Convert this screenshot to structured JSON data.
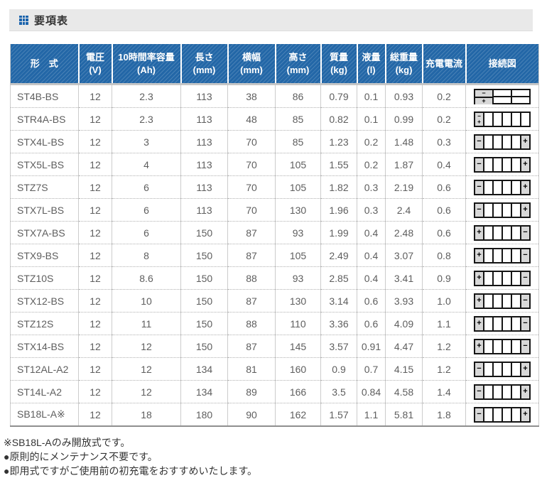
{
  "header": {
    "title": "要項表",
    "accent_color": "#1c64ad",
    "bar_color": "#e9e9e9"
  },
  "table": {
    "header_bg": "#2367a7",
    "columns": [
      {
        "key": "model",
        "label": "形　式",
        "unit": ""
      },
      {
        "key": "voltage_v",
        "label": "電圧",
        "unit": "(V)"
      },
      {
        "key": "capacity_ah",
        "label": "10時間率容量",
        "unit": "(Ah)"
      },
      {
        "key": "length_mm",
        "label": "長さ",
        "unit": "(mm)"
      },
      {
        "key": "width_mm",
        "label": "横幅",
        "unit": "(mm)"
      },
      {
        "key": "height_mm",
        "label": "高さ",
        "unit": "(mm)"
      },
      {
        "key": "mass_kg",
        "label": "質量",
        "unit": "(kg)"
      },
      {
        "key": "liquid_l",
        "label": "液量",
        "unit": "(l)"
      },
      {
        "key": "total_weight_kg",
        "label": "総重量",
        "unit": "(kg)"
      },
      {
        "key": "charge_current_a",
        "label": "充電電流",
        "unit": ""
      },
      {
        "key": "diagram",
        "label": "接続図",
        "unit": ""
      }
    ],
    "rows": [
      {
        "model": "ST4B-BS",
        "voltage_v": "12",
        "capacity_ah": "2.3",
        "length_mm": "113",
        "width_mm": "38",
        "height_mm": "86",
        "mass_kg": "0.79",
        "liquid_l": "0.1",
        "total_weight_kg": "0.93",
        "charge_current_a": "0.2",
        "diagram": {
          "type": "grid3x2",
          "first": "−",
          "last": "+"
        }
      },
      {
        "model": "STR4A-BS",
        "voltage_v": "12",
        "capacity_ah": "2.3",
        "length_mm": "113",
        "width_mm": "48",
        "height_mm": "85",
        "mass_kg": "0.82",
        "liquid_l": "0.1",
        "total_weight_kg": "0.99",
        "charge_current_a": "0.2",
        "diagram": {
          "type": "row6stack",
          "first": "−",
          "last": "+"
        }
      },
      {
        "model": "STX4L-BS",
        "voltage_v": "12",
        "capacity_ah": "3",
        "length_mm": "113",
        "width_mm": "70",
        "height_mm": "85",
        "mass_kg": "1.23",
        "liquid_l": "0.2",
        "total_weight_kg": "1.48",
        "charge_current_a": "0.3",
        "diagram": {
          "type": "row6",
          "first": "−",
          "last": "+"
        }
      },
      {
        "model": "STX5L-BS",
        "voltage_v": "12",
        "capacity_ah": "4",
        "length_mm": "113",
        "width_mm": "70",
        "height_mm": "105",
        "mass_kg": "1.55",
        "liquid_l": "0.2",
        "total_weight_kg": "1.87",
        "charge_current_a": "0.4",
        "diagram": {
          "type": "row6",
          "first": "−",
          "last": "+"
        }
      },
      {
        "model": "STZ7S",
        "voltage_v": "12",
        "capacity_ah": "6",
        "length_mm": "113",
        "width_mm": "70",
        "height_mm": "105",
        "mass_kg": "1.82",
        "liquid_l": "0.3",
        "total_weight_kg": "2.19",
        "charge_current_a": "0.6",
        "diagram": {
          "type": "row6",
          "first": "−",
          "last": "+"
        }
      },
      {
        "model": "STX7L-BS",
        "voltage_v": "12",
        "capacity_ah": "6",
        "length_mm": "113",
        "width_mm": "70",
        "height_mm": "130",
        "mass_kg": "1.96",
        "liquid_l": "0.3",
        "total_weight_kg": "2.4",
        "charge_current_a": "0.6",
        "diagram": {
          "type": "row6",
          "first": "−",
          "last": "+"
        }
      },
      {
        "model": "STX7A-BS",
        "voltage_v": "12",
        "capacity_ah": "6",
        "length_mm": "150",
        "width_mm": "87",
        "height_mm": "93",
        "mass_kg": "1.99",
        "liquid_l": "0.4",
        "total_weight_kg": "2.48",
        "charge_current_a": "0.6",
        "diagram": {
          "type": "row6",
          "first": "+",
          "last": "−"
        }
      },
      {
        "model": "STX9-BS",
        "voltage_v": "12",
        "capacity_ah": "8",
        "length_mm": "150",
        "width_mm": "87",
        "height_mm": "105",
        "mass_kg": "2.49",
        "liquid_l": "0.4",
        "total_weight_kg": "3.07",
        "charge_current_a": "0.8",
        "diagram": {
          "type": "row6",
          "first": "+",
          "last": "−"
        }
      },
      {
        "model": "STZ10S",
        "voltage_v": "12",
        "capacity_ah": "8.6",
        "length_mm": "150",
        "width_mm": "88",
        "height_mm": "93",
        "mass_kg": "2.85",
        "liquid_l": "0.4",
        "total_weight_kg": "3.41",
        "charge_current_a": "0.9",
        "diagram": {
          "type": "row6",
          "first": "+",
          "last": "−"
        }
      },
      {
        "model": "STX12-BS",
        "voltage_v": "12",
        "capacity_ah": "10",
        "length_mm": "150",
        "width_mm": "87",
        "height_mm": "130",
        "mass_kg": "3.14",
        "liquid_l": "0.6",
        "total_weight_kg": "3.93",
        "charge_current_a": "1.0",
        "diagram": {
          "type": "row6",
          "first": "+",
          "last": "−"
        }
      },
      {
        "model": "STZ12S",
        "voltage_v": "12",
        "capacity_ah": "11",
        "length_mm": "150",
        "width_mm": "88",
        "height_mm": "110",
        "mass_kg": "3.36",
        "liquid_l": "0.6",
        "total_weight_kg": "4.09",
        "charge_current_a": "1.1",
        "diagram": {
          "type": "row6",
          "first": "+",
          "last": "−"
        }
      },
      {
        "model": "STX14-BS",
        "voltage_v": "12",
        "capacity_ah": "12",
        "length_mm": "150",
        "width_mm": "87",
        "height_mm": "145",
        "mass_kg": "3.57",
        "liquid_l": "0.91",
        "total_weight_kg": "4.47",
        "charge_current_a": "1.2",
        "diagram": {
          "type": "row6",
          "first": "+",
          "last": "−"
        }
      },
      {
        "model": "ST12AL-A2",
        "voltage_v": "12",
        "capacity_ah": "12",
        "length_mm": "134",
        "width_mm": "81",
        "height_mm": "160",
        "mass_kg": "0.9",
        "liquid_l": "0.7",
        "total_weight_kg": "4.15",
        "charge_current_a": "1.2",
        "diagram": {
          "type": "row6",
          "first": "−",
          "last": "+"
        }
      },
      {
        "model": "ST14L-A2",
        "voltage_v": "12",
        "capacity_ah": "12",
        "length_mm": "134",
        "width_mm": "89",
        "height_mm": "166",
        "mass_kg": "3.5",
        "liquid_l": "0.84",
        "total_weight_kg": "4.58",
        "charge_current_a": "1.4",
        "diagram": {
          "type": "row6",
          "first": "−",
          "last": "+"
        }
      },
      {
        "model": "SB18L-A※",
        "voltage_v": "12",
        "capacity_ah": "18",
        "length_mm": "180",
        "width_mm": "90",
        "height_mm": "162",
        "mass_kg": "1.57",
        "liquid_l": "1.1",
        "total_weight_kg": "5.81",
        "charge_current_a": "1.8",
        "diagram": {
          "type": "row6",
          "first": "−",
          "last": "+"
        }
      }
    ]
  },
  "notes": [
    "※SB18L-Aのみ開放式です。",
    "●原則的にメンテナンス不要です。",
    "●即用式ですがご使用前の初充電をおすすめいたします。"
  ]
}
